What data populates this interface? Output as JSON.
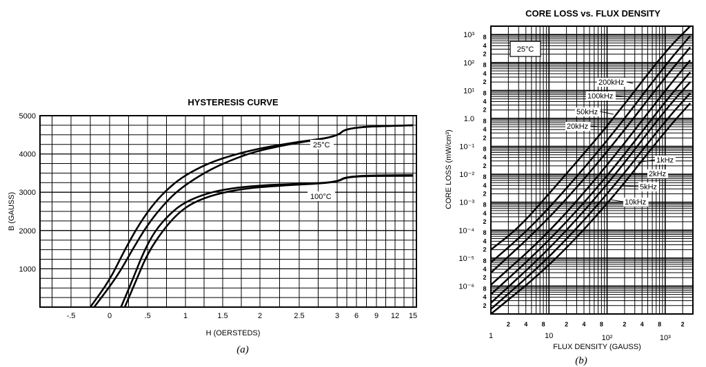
{
  "chart_data": [
    {
      "type": "line",
      "title": "HYSTERESIS CURVE",
      "xlabel": "H  (OERSTEDS)",
      "ylabel": "B (GAUSS)",
      "caption": "(a)",
      "x_tick_labels": [
        "-.5",
        "0",
        ".5",
        "1",
        "1.5",
        "2",
        "2.5",
        "3",
        "6",
        "9",
        "12",
        "15"
      ],
      "y_tick_labels": [
        "1000",
        "2000",
        "3000",
        "4000",
        "5000"
      ],
      "ylim": [
        0,
        5000
      ],
      "grid": true,
      "series": [
        {
          "name": "25°C",
          "branches": [
            [
              [
                -0.25,
                0
              ],
              [
                0,
                700
              ],
              [
                0.2,
                1500
              ],
              [
                0.4,
                2200
              ],
              [
                0.6,
                2750
              ],
              [
                0.8,
                3150
              ],
              [
                1.0,
                3450
              ],
              [
                1.3,
                3750
              ],
              [
                1.6,
                3950
              ],
              [
                2.0,
                4150
              ],
              [
                2.5,
                4320
              ],
              [
                3.0,
                4450
              ],
              [
                4.5,
                4700
              ],
              [
                15,
                4750
              ]
            ],
            [
              [
                -0.2,
                0
              ],
              [
                0.1,
                800
              ],
              [
                0.3,
                1500
              ],
              [
                0.5,
                2150
              ],
              [
                0.7,
                2650
              ],
              [
                0.9,
                3050
              ],
              [
                1.2,
                3450
              ],
              [
                1.5,
                3750
              ],
              [
                1.9,
                4050
              ],
              [
                2.4,
                4270
              ],
              [
                3.0,
                4450
              ],
              [
                4.5,
                4700
              ],
              [
                15,
                4750
              ]
            ]
          ]
        },
        {
          "name": "100°C",
          "branches": [
            [
              [
                0.15,
                0
              ],
              [
                0.3,
                700
              ],
              [
                0.45,
                1450
              ],
              [
                0.6,
                2000
              ],
              [
                0.8,
                2450
              ],
              [
                1.0,
                2750
              ],
              [
                1.3,
                2980
              ],
              [
                1.6,
                3100
              ],
              [
                2.0,
                3180
              ],
              [
                2.5,
                3220
              ],
              [
                3.0,
                3260
              ],
              [
                4.5,
                3430
              ],
              [
                15,
                3450
              ]
            ],
            [
              [
                0.2,
                0
              ],
              [
                0.35,
                700
              ],
              [
                0.5,
                1400
              ],
              [
                0.7,
                2000
              ],
              [
                0.9,
                2450
              ],
              [
                1.1,
                2730
              ],
              [
                1.4,
                2950
              ],
              [
                1.8,
                3100
              ],
              [
                2.3,
                3180
              ],
              [
                3.0,
                3250
              ],
              [
                4.5,
                3420
              ],
              [
                15,
                3430
              ]
            ]
          ]
        }
      ]
    },
    {
      "type": "line",
      "title": "CORE LOSS vs. FLUX DENSITY",
      "xlabel": "FLUX DENSITY (GAUSS)",
      "ylabel": "CORE LOSS (mW/cm³)",
      "caption": "(b)",
      "x_scale": "log",
      "y_scale": "log",
      "xlim": [
        1,
        3000
      ],
      "ylim": [
        1e-07,
        2000
      ],
      "grid": true,
      "annotation": "25°C",
      "x_tick_labels": [
        {
          "v": 1,
          "t": "1"
        },
        {
          "v": 10,
          "t": "10"
        }
      ],
      "y_tick_labels": [
        "10³",
        "10²",
        "10¹",
        "1.0",
        "10⁻¹",
        "10⁻²",
        "10⁻³",
        "10⁻⁴",
        "10⁻⁵",
        "10⁻⁶"
      ],
      "series": [
        {
          "name": "200kHz",
          "points": [
            [
              1,
              2e-05
            ],
            [
              3,
              0.00012
            ],
            [
              10,
              0.002
            ],
            [
              100,
              0.5
            ],
            [
              1000,
              250
            ],
            [
              2700,
              2000
            ]
          ]
        },
        {
          "name": "100kHz",
          "points": [
            [
              1,
              7e-06
            ],
            [
              3,
              5e-05
            ],
            [
              10,
              0.0006
            ],
            [
              100,
              0.15
            ],
            [
              1000,
              80
            ],
            [
              2700,
              900
            ]
          ]
        },
        {
          "name": "50kHz",
          "points": [
            [
              1,
              3e-06
            ],
            [
              10,
              0.00025
            ],
            [
              100,
              0.06
            ],
            [
              1000,
              30
            ],
            [
              2700,
              350
            ]
          ]
        },
        {
          "name": "20kHz",
          "points": [
            [
              1,
              1.1e-06
            ],
            [
              10,
              8e-05
            ],
            [
              100,
              0.02
            ],
            [
              1000,
              10
            ],
            [
              2700,
              120
            ]
          ]
        },
        {
          "name": "10kHz",
          "points": [
            [
              1,
              5e-07
            ],
            [
              10,
              4e-05
            ],
            [
              100,
              0.008
            ],
            [
              1000,
              4
            ],
            [
              2700,
              45
            ]
          ]
        },
        {
          "name": "5kHz",
          "points": [
            [
              1,
              2.5e-07
            ],
            [
              10,
              2e-05
            ],
            [
              100,
              0.004
            ],
            [
              1000,
              2
            ],
            [
              2700,
              20
            ]
          ]
        },
        {
          "name": "2kHz",
          "points": [
            [
              1,
              1.5e-07
            ],
            [
              10,
              1e-05
            ],
            [
              100,
              0.0018
            ],
            [
              1000,
              0.8
            ],
            [
              2700,
              8
            ]
          ]
        },
        {
          "name": "1kHz",
          "points": [
            [
              1,
              1e-07
            ],
            [
              10,
              5e-06
            ],
            [
              100,
              0.0008
            ],
            [
              1000,
              0.35
            ],
            [
              2700,
              3.5
            ]
          ]
        }
      ],
      "series_labels": [
        "200kHz",
        "100kHz",
        "50kHz",
        "20kHz",
        "1kHz",
        "2kHz",
        "5kHz",
        "10kHz"
      ]
    }
  ]
}
